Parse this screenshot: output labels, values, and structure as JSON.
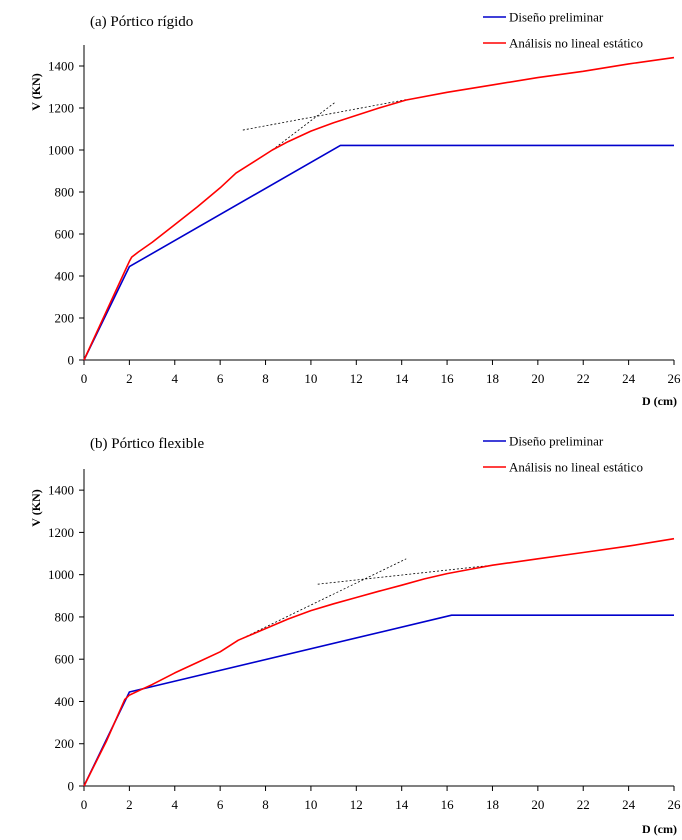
{
  "chart_data": [
    {
      "type": "line",
      "title": "(a)   Pórtico rígido",
      "xlabel": "D (cm)",
      "ylabel": "V (KN)",
      "xlim": [
        0,
        26
      ],
      "ylim": [
        0,
        1500
      ],
      "xticks": [
        0,
        2,
        4,
        6,
        8,
        10,
        12,
        14,
        16,
        18,
        20,
        22,
        24,
        26
      ],
      "yticks": [
        0,
        200,
        400,
        600,
        800,
        1000,
        1200,
        1400
      ],
      "legend_position": "top-right",
      "series": [
        {
          "name": "Diseño preliminar",
          "color": "#0000cc",
          "x": [
            0,
            2.0,
            11.3,
            26
          ],
          "y": [
            0,
            445,
            1022,
            1022
          ]
        },
        {
          "name": "Análisis no lineal estático",
          "color": "#ff0000",
          "x": [
            0,
            1.0,
            2.0,
            2.1,
            2.4,
            3.0,
            4.0,
            5.0,
            6.0,
            6.7,
            7.5,
            8.3,
            9.0,
            10.0,
            11.0,
            12.0,
            13.0,
            14.2,
            16.0,
            18.0,
            20.0,
            22.0,
            24.0,
            26.0
          ],
          "y": [
            0,
            235,
            470,
            490,
            515,
            560,
            645,
            730,
            820,
            890,
            945,
            1000,
            1040,
            1090,
            1130,
            1165,
            1200,
            1238,
            1275,
            1310,
            1345,
            1375,
            1410,
            1440
          ]
        }
      ],
      "guide_lines": [
        {
          "x": [
            8.3,
            11.1
          ],
          "y": [
            1000,
            1230
          ]
        },
        {
          "x": [
            7.0,
            14.2
          ],
          "y": [
            1095,
            1240
          ]
        }
      ]
    },
    {
      "type": "line",
      "title": "(b)   Pórtico flexible",
      "xlabel": "D (cm)",
      "ylabel": "V (KN)",
      "xlim": [
        0,
        26
      ],
      "ylim": [
        0,
        1500
      ],
      "xticks": [
        0,
        2,
        4,
        6,
        8,
        10,
        12,
        14,
        16,
        18,
        20,
        22,
        24,
        26
      ],
      "yticks": [
        0,
        200,
        400,
        600,
        800,
        1000,
        1200,
        1400
      ],
      "legend_position": "top-right",
      "series": [
        {
          "name": "Diseño preliminar",
          "color": "#0000cc",
          "x": [
            0,
            2.0,
            16.2,
            26
          ],
          "y": [
            0,
            445,
            808,
            808
          ]
        },
        {
          "name": "Análisis no lineal estático",
          "color": "#ff0000",
          "x": [
            0,
            1.0,
            1.8,
            2.0,
            2.5,
            3.0,
            4.0,
            5.0,
            6.0,
            6.8,
            8.0,
            9.0,
            10.0,
            11.0,
            12.0,
            13.0,
            14.0,
            15.0,
            16.0,
            17.0,
            18.0,
            20.0,
            22.0,
            24.0,
            26.0
          ],
          "y": [
            0,
            215,
            410,
            430,
            455,
            480,
            535,
            585,
            635,
            690,
            745,
            790,
            830,
            862,
            892,
            922,
            950,
            980,
            1005,
            1025,
            1045,
            1075,
            1105,
            1135,
            1170
          ]
        }
      ],
      "guide_lines": [
        {
          "x": [
            7.0,
            14.2
          ],
          "y": [
            700,
            1075
          ]
        },
        {
          "x": [
            10.3,
            18.0
          ],
          "y": [
            955,
            1045
          ]
        }
      ]
    }
  ]
}
